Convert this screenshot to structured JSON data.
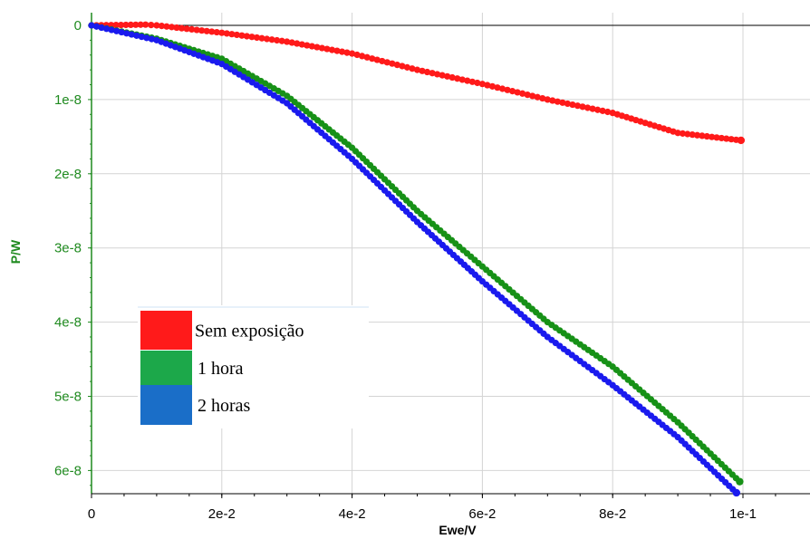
{
  "chart_data": {
    "type": "scatter",
    "xlabel": "Ewe/V",
    "ylabel": "P/W",
    "xlim": [
      0,
      0.1125
    ],
    "ylim": [
      -6.3e-08,
      2e-09
    ],
    "grid": true,
    "x_ticks": [
      {
        "value": 0,
        "label": "0"
      },
      {
        "value": 0.02,
        "label": "2e-2"
      },
      {
        "value": 0.04,
        "label": "4e-2"
      },
      {
        "value": 0.06,
        "label": "6e-2"
      },
      {
        "value": 0.08,
        "label": "8e-2"
      },
      {
        "value": 0.1,
        "label": "1e-1"
      }
    ],
    "y_ticks": [
      {
        "value": 0,
        "label": "0"
      },
      {
        "value": -1e-08,
        "label": "1e-8"
      },
      {
        "value": -2e-08,
        "label": "2e-8"
      },
      {
        "value": -3e-08,
        "label": "3e-8"
      },
      {
        "value": -4e-08,
        "label": "4e-8"
      },
      {
        "value": -5e-08,
        "label": "5e-8"
      },
      {
        "value": -6e-08,
        "label": "6e-8"
      }
    ],
    "legend_position": "center-left",
    "series": [
      {
        "name": "Sem exposição",
        "color": "#ff1a1a",
        "x": [
          0.0,
          0.0083,
          0.01,
          0.02,
          0.03,
          0.04,
          0.05,
          0.06,
          0.07,
          0.08,
          0.09,
          0.0997
        ],
        "y": [
          0.0,
          1e-10,
          0.0,
          -1e-09,
          -2.2e-09,
          -3.8e-09,
          -6e-09,
          -7.9e-09,
          -1e-08,
          -1.18e-08,
          -1.45e-08,
          -1.55e-08
        ]
      },
      {
        "name": "1 hora",
        "color": "#179117",
        "x": [
          0.0,
          0.01,
          0.02,
          0.03,
          0.04,
          0.05,
          0.06,
          0.07,
          0.08,
          0.09,
          0.0995
        ],
        "y": [
          0.0,
          -1.8e-09,
          -4.5e-09,
          -9.5e-09,
          -1.65e-08,
          -2.5e-08,
          -3.25e-08,
          -4e-08,
          -4.6e-08,
          -5.35e-08,
          -6.15e-08
        ]
      },
      {
        "name": "2 horas",
        "color": "#1a1aee",
        "x": [
          0.0,
          0.01,
          0.02,
          0.03,
          0.04,
          0.05,
          0.06,
          0.07,
          0.08,
          0.09,
          0.099
        ],
        "y": [
          0.0,
          -2e-09,
          -5.2e-09,
          -1.05e-08,
          -1.8e-08,
          -2.65e-08,
          -3.45e-08,
          -4.2e-08,
          -4.85e-08,
          -5.55e-08,
          -6.3e-08
        ]
      }
    ],
    "legend": [
      {
        "label": "Sem exposição",
        "color": "#ff1a1a"
      },
      {
        "label": "1 hora",
        "color": "#1ca84a"
      },
      {
        "label": "2 horas",
        "color": "#1a6ec8"
      }
    ]
  }
}
